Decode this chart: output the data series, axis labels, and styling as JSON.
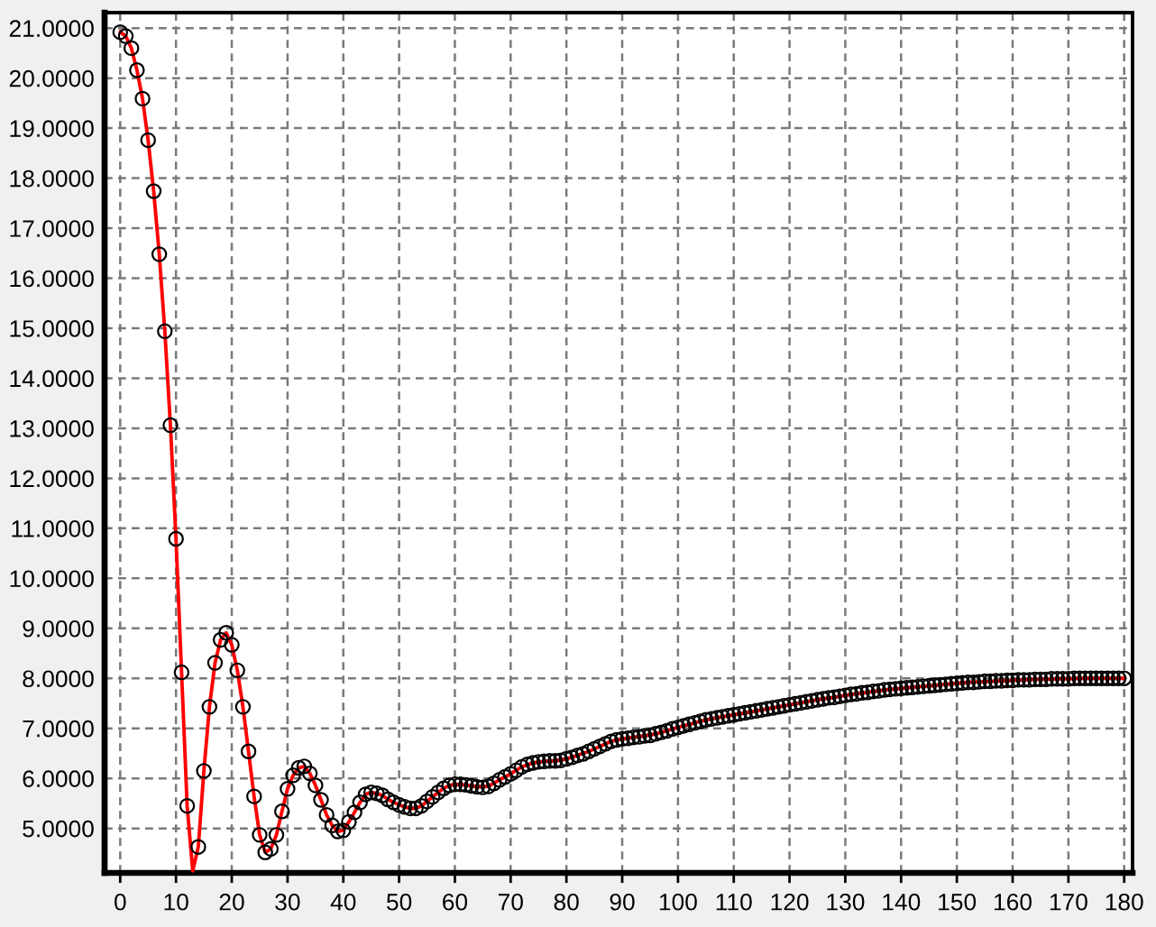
{
  "chart_data": {
    "type": "scatter",
    "x": [
      0,
      1,
      2,
      3,
      4,
      5,
      6,
      7,
      8,
      9,
      10,
      11,
      12,
      13,
      14,
      15,
      16,
      17,
      18,
      19,
      20,
      21,
      22,
      23,
      24,
      25,
      26,
      27,
      28,
      29,
      30,
      31,
      32,
      33,
      34,
      35,
      36,
      37,
      38,
      39,
      40,
      41,
      42,
      43,
      44,
      45,
      46,
      47,
      48,
      49,
      50,
      51,
      52,
      53,
      54,
      55,
      56,
      57,
      58,
      59,
      60,
      61,
      62,
      63,
      64,
      65,
      66,
      67,
      68,
      69,
      70,
      71,
      72,
      73,
      74,
      75,
      76,
      77,
      78,
      79,
      80,
      81,
      82,
      83,
      84,
      85,
      86,
      87,
      88,
      89,
      90,
      91,
      92,
      93,
      94,
      95,
      96,
      97,
      98,
      99,
      100,
      101,
      102,
      103,
      104,
      105,
      106,
      107,
      108,
      109,
      110,
      111,
      112,
      113,
      114,
      115,
      116,
      117,
      118,
      119,
      120,
      121,
      122,
      123,
      124,
      125,
      126,
      127,
      128,
      129,
      130,
      131,
      132,
      133,
      134,
      135,
      136,
      137,
      138,
      139,
      140,
      141,
      142,
      143,
      144,
      145,
      146,
      147,
      148,
      149,
      150,
      151,
      152,
      153,
      154,
      155,
      156,
      157,
      158,
      159,
      160,
      161,
      162,
      163,
      164,
      165,
      166,
      167,
      168,
      169,
      170,
      171,
      172,
      173,
      174,
      175,
      176,
      177,
      178,
      179,
      180
    ],
    "xlim": [
      -2.8,
      181.5
    ],
    "xticks": [
      0,
      10,
      20,
      30,
      40,
      50,
      60,
      70,
      80,
      90,
      100,
      110,
      120,
      130,
      140,
      150,
      160,
      170,
      180
    ],
    "ylim": [
      4.11,
      21.31
    ],
    "yticks": [
      {
        "value": 5,
        "label": "5.0000"
      },
      {
        "value": 6,
        "label": "6.0000"
      },
      {
        "value": 7,
        "label": "7.0000"
      },
      {
        "value": 8,
        "label": "8.0000"
      },
      {
        "value": 9,
        "label": "9.0000"
      },
      {
        "value": 10,
        "label": "10.0000"
      },
      {
        "value": 11,
        "label": "11.0000"
      },
      {
        "value": 12,
        "label": "12.0000"
      },
      {
        "value": 13,
        "label": "13.0000"
      },
      {
        "value": 14,
        "label": "14.0000"
      },
      {
        "value": 15,
        "label": "15.0000"
      },
      {
        "value": 16,
        "label": "16.0000"
      },
      {
        "value": 17,
        "label": "17.0000"
      },
      {
        "value": 18,
        "label": "18.0000"
      },
      {
        "value": 19,
        "label": "19.0000"
      },
      {
        "value": 20,
        "label": "20.0000"
      },
      {
        "value": 21,
        "label": "21.0000"
      }
    ],
    "grid": true,
    "series": [
      {
        "type": "line",
        "color": "#ff0000",
        "line_style": "solid",
        "marker": "none",
        "x": [
          0,
          1,
          2,
          3,
          4,
          5,
          6,
          7,
          8,
          9,
          10,
          11,
          12,
          13,
          14,
          15,
          16,
          17,
          18,
          19,
          20,
          21,
          22,
          23,
          24,
          25,
          26,
          27,
          28,
          29,
          30,
          31,
          32,
          33,
          34,
          35,
          36,
          37,
          38,
          39,
          40,
          41,
          42,
          43,
          44,
          45,
          46,
          47,
          48,
          49,
          50,
          51,
          52,
          53,
          54,
          55,
          56,
          57,
          58,
          59,
          60,
          62,
          64,
          66,
          68,
          70,
          72,
          74,
          76,
          78,
          80,
          82,
          84,
          86,
          88,
          90,
          92,
          94,
          96,
          98,
          100,
          102,
          104,
          106,
          108,
          110,
          112,
          114,
          116,
          118,
          120,
          122,
          124,
          126,
          128,
          130,
          132,
          134,
          136,
          138,
          140,
          142,
          144,
          146,
          148,
          150,
          152,
          154,
          156,
          158,
          160,
          162,
          164,
          166,
          168,
          170,
          172,
          174,
          176,
          178,
          180
        ],
        "values": [
          20.92,
          20.84,
          20.6,
          20.16,
          19.59,
          18.76,
          17.74,
          16.48,
          14.94,
          13.06,
          10.79,
          8.12,
          5.45,
          4.15,
          4.63,
          6.15,
          7.43,
          8.31,
          8.77,
          8.91,
          8.67,
          8.16,
          7.43,
          6.54,
          5.64,
          4.87,
          4.52,
          4.59,
          4.87,
          5.34,
          5.79,
          6.06,
          6.21,
          6.24,
          6.1,
          5.86,
          5.57,
          5.27,
          5.06,
          4.94,
          4.96,
          5.13,
          5.32,
          5.52,
          5.68,
          5.72,
          5.7,
          5.66,
          5.58,
          5.52,
          5.47,
          5.43,
          5.4,
          5.4,
          5.45,
          5.54,
          5.63,
          5.72,
          5.8,
          5.86,
          5.88,
          5.87,
          5.83,
          5.84,
          5.97,
          6.09,
          6.23,
          6.31,
          6.34,
          6.35,
          6.39,
          6.46,
          6.54,
          6.64,
          6.74,
          6.79,
          6.82,
          6.85,
          6.89,
          6.95,
          7.02,
          7.08,
          7.14,
          7.19,
          7.23,
          7.27,
          7.31,
          7.35,
          7.39,
          7.43,
          7.47,
          7.51,
          7.55,
          7.59,
          7.62,
          7.66,
          7.69,
          7.72,
          7.75,
          7.78,
          7.8,
          7.82,
          7.84,
          7.86,
          7.88,
          7.9,
          7.92,
          7.93,
          7.94,
          7.95,
          7.96,
          7.97,
          7.98,
          7.98,
          7.99,
          7.99,
          8.0,
          8.0,
          8.0,
          8.0,
          8.0
        ]
      },
      {
        "color": "#000000",
        "marker": "circle",
        "values": [
          20.92,
          20.84,
          20.6,
          20.16,
          19.59,
          18.76,
          17.74,
          16.48,
          14.94,
          13.06,
          10.79,
          8.12,
          5.45,
          null,
          4.63,
          6.15,
          7.43,
          8.31,
          8.77,
          8.91,
          8.67,
          8.16,
          7.43,
          6.54,
          5.64,
          4.87,
          4.52,
          4.59,
          4.87,
          5.34,
          5.79,
          6.06,
          6.21,
          6.24,
          6.1,
          5.86,
          5.57,
          5.27,
          5.06,
          4.94,
          4.96,
          5.13,
          5.32,
          5.52,
          5.68,
          5.72,
          5.7,
          5.66,
          5.58,
          5.52,
          5.47,
          5.43,
          5.4,
          5.4,
          5.45,
          5.54,
          5.63,
          5.72,
          5.8,
          5.86,
          5.88,
          5.88,
          5.87,
          5.85,
          5.83,
          5.82,
          5.84,
          5.9,
          5.97,
          6.03,
          6.09,
          6.16,
          6.23,
          6.28,
          6.31,
          6.33,
          6.34,
          6.35,
          6.35,
          6.36,
          6.39,
          6.42,
          6.46,
          6.49,
          6.54,
          6.59,
          6.64,
          6.69,
          6.74,
          6.77,
          6.79,
          6.8,
          6.82,
          6.83,
          6.85,
          6.86,
          6.89,
          6.92,
          6.95,
          6.99,
          7.02,
          7.05,
          7.08,
          7.11,
          7.14,
          7.17,
          7.19,
          7.21,
          7.23,
          7.25,
          7.27,
          7.29,
          7.31,
          7.33,
          7.35,
          7.37,
          7.39,
          7.41,
          7.43,
          7.45,
          7.47,
          7.49,
          7.51,
          7.53,
          7.55,
          7.57,
          7.59,
          7.61,
          7.62,
          7.64,
          7.66,
          7.68,
          7.69,
          7.71,
          7.72,
          7.74,
          7.75,
          7.77,
          7.78,
          7.79,
          7.8,
          7.81,
          7.82,
          7.83,
          7.84,
          7.85,
          7.86,
          7.87,
          7.88,
          7.89,
          7.9,
          7.91,
          7.92,
          7.92,
          7.93,
          7.94,
          7.94,
          7.95,
          7.95,
          7.96,
          7.96,
          7.97,
          7.97,
          7.97,
          7.98,
          7.98,
          7.98,
          7.99,
          7.99,
          7.99,
          7.99,
          8.0,
          8.0,
          8.0,
          8.0,
          8.0,
          8.0,
          8.0,
          8.0,
          8.0,
          8.0
        ]
      }
    ]
  }
}
